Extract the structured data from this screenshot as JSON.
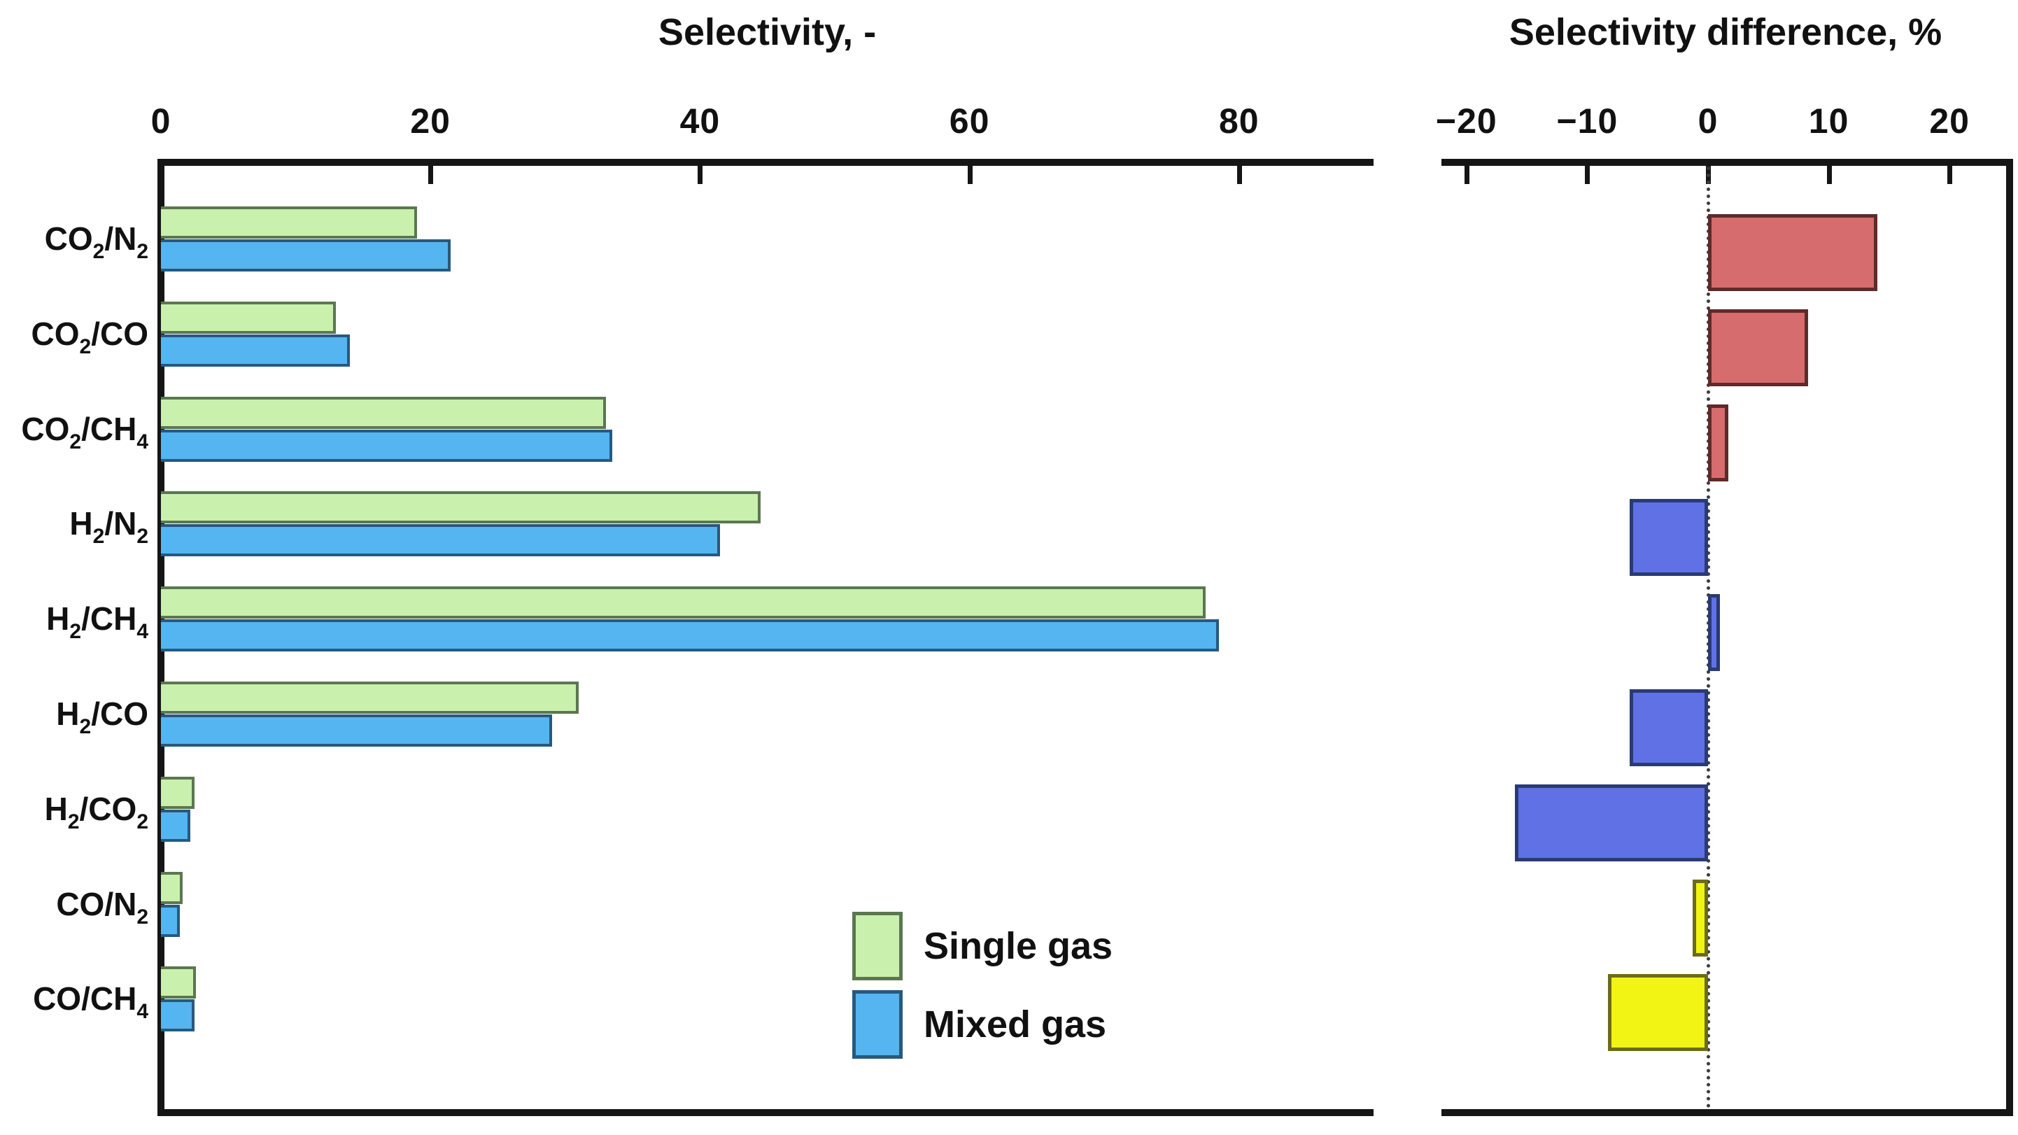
{
  "figure": {
    "background": "#ffffff",
    "left_panel_title": "Selectivity, -",
    "right_panel_title": "Selectivity difference, %"
  },
  "legend": {
    "items": [
      {
        "label": "Single gas",
        "fill": "#c9f0ad",
        "stroke": "#5b7750"
      },
      {
        "label": "Mixed gas",
        "fill": "#55b5f0",
        "stroke": "#27597f"
      }
    ]
  },
  "chart_data": [
    {
      "type": "bar",
      "orientation": "horizontal",
      "panel": "left",
      "title": "Selectivity, -",
      "xlabel": "",
      "ylabel": "",
      "xlim": [
        0,
        90
      ],
      "xticks": [
        0,
        20,
        40,
        60,
        80
      ],
      "grid": false,
      "categories": [
        "CO₂/N₂",
        "CO₂/CO",
        "CO₂/CH₄",
        "H₂/N₂",
        "H₂/CH₄",
        "H₂/CO",
        "H₂/CO₂",
        "CO/N₂",
        "CO/CH₄"
      ],
      "series": [
        {
          "name": "Single gas",
          "fill": "#c9f0ad",
          "stroke": "#5b7750",
          "values": [
            19,
            13,
            33,
            44.5,
            77.5,
            31,
            2.5,
            1.6,
            2.6
          ]
        },
        {
          "name": "Mixed gas",
          "fill": "#55b5f0",
          "stroke": "#27597f",
          "values": [
            21.5,
            14,
            33.5,
            41.5,
            78.5,
            29,
            2.2,
            1.4,
            2.5
          ]
        }
      ],
      "legend_position": "inside lower right"
    },
    {
      "type": "bar",
      "orientation": "horizontal",
      "panel": "right",
      "title": "Selectivity difference, %",
      "xlabel": "",
      "ylabel": "",
      "xlim": [
        -22,
        25
      ],
      "xticks": [
        -20,
        -10,
        0,
        10,
        20
      ],
      "grid": false,
      "zero_line": "dotted",
      "categories": [
        "CO₂/N₂",
        "CO₂/CO",
        "CO₂/CH₄",
        "H₂/N₂",
        "H₂/CH₄",
        "H₂/CO",
        "H₂/CO₂",
        "CO/N₂",
        "CO/CH₄"
      ],
      "values": [
        14,
        8.3,
        1.7,
        -6.5,
        1,
        -6.5,
        -16,
        -1.3,
        -8.3
      ],
      "bar_fills": [
        "#d76c6e",
        "#d76c6e",
        "#d76c6e",
        "#5f71e5",
        "#5f71e5",
        "#5f71e5",
        "#5f71e5",
        "#f2f413",
        "#f2f413"
      ],
      "bar_strokes": [
        "#5e2a2a",
        "#5e2a2a",
        "#5e2a2a",
        "#2b3a72",
        "#2b3a72",
        "#2b3a72",
        "#2b3a72",
        "#6b6b1a",
        "#6b6b1a"
      ]
    }
  ]
}
